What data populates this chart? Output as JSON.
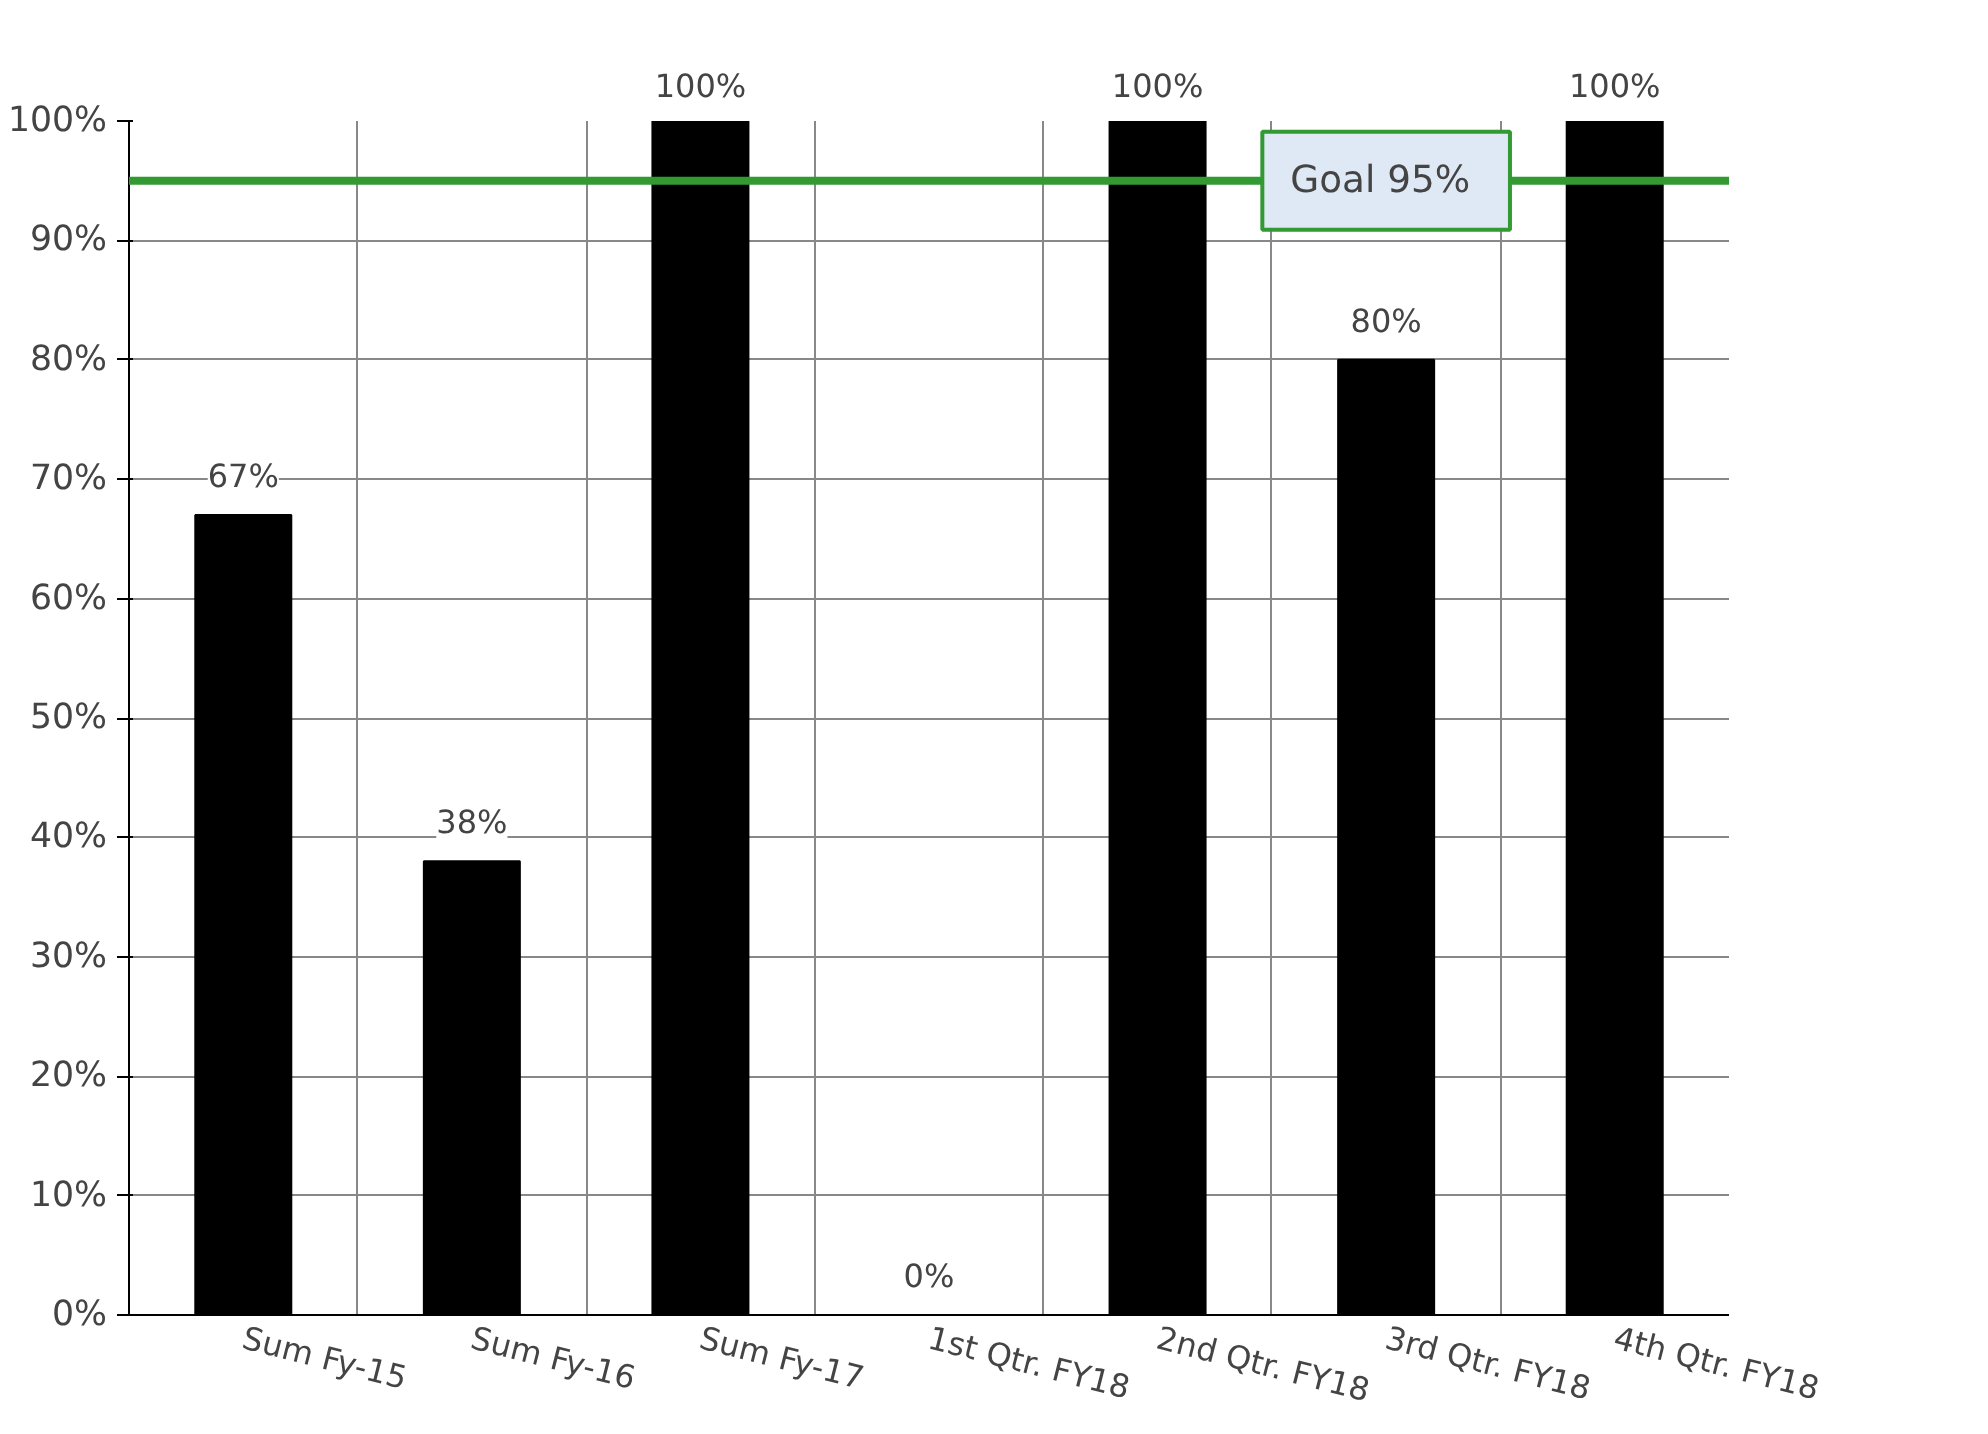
{
  "chart_data": {
    "type": "bar",
    "categories": [
      "Sum Fy-15",
      "Sum Fy-16",
      "Sum Fy-17",
      "1st Qtr. FY18",
      "2nd Qtr. FY18",
      "3rd Qtr. FY18",
      "4th Qtr. FY18"
    ],
    "values": [
      67,
      38,
      100,
      0,
      100,
      80,
      100
    ],
    "value_labels": [
      "67%",
      "38%",
      "100%",
      "0%",
      "100%",
      "80%",
      "100%"
    ],
    "color": "#000000",
    "ylim": [
      0,
      100
    ],
    "yticks": [
      {
        "value": 0,
        "label": "0%"
      },
      {
        "value": 10,
        "label": "10%"
      },
      {
        "value": 20,
        "label": "20%"
      },
      {
        "value": 30,
        "label": "30%"
      },
      {
        "value": 40,
        "label": "40%"
      },
      {
        "value": 50,
        "label": "50%"
      },
      {
        "value": 60,
        "label": "60%"
      },
      {
        "value": 70,
        "label": "70%"
      },
      {
        "value": 80,
        "label": "80%"
      },
      {
        "value": 90,
        "label": "90%"
      },
      {
        "value": 100,
        "label": "100%"
      }
    ],
    "ref_lines": [
      {
        "axis": "y",
        "value": 95,
        "label": "Goal  95%",
        "color": "#339933"
      }
    ],
    "grid": true
  }
}
